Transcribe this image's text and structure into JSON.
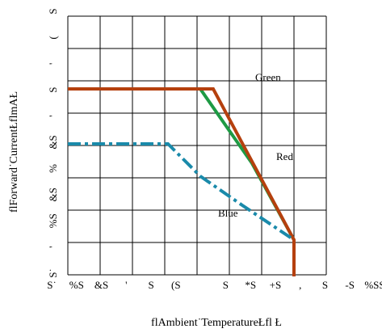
{
  "chart_data": {
    "type": "line",
    "xlabel": "flAmbient˙TemperatureŁfl  Ł",
    "ylabel": "flForward˙CurrentŁflmAŁ",
    "x_tick_labels": [
      "S˙",
      "%S",
      "&S",
      "'",
      "S",
      "(S",
      "",
      "S",
      "*S",
      "+S",
      ",",
      "S",
      "-S",
      "%SS"
    ],
    "y_tick_labels": [
      "S˙",
      "'",
      "%S",
      "&S",
      "%",
      "&S",
      "'",
      "S",
      "'",
      "(",
      "S"
    ],
    "grid": true,
    "xlim": [
      0,
      8
    ],
    "ylim": [
      0,
      8
    ],
    "series": [
      {
        "name": "Green",
        "color": "#1e9a44",
        "dash": "solid",
        "x": [
          0,
          4.1,
          5.7,
          7
        ],
        "y": [
          5.75,
          5.75,
          3.45,
          1.08
        ]
      },
      {
        "name": "Red",
        "color": "#b5400e",
        "dash": "solid",
        "x": [
          0,
          4.5,
          7,
          7,
          7
        ],
        "y": [
          5.75,
          5.75,
          1.08,
          0,
          -0.05
        ]
      },
      {
        "name": "Blue",
        "color": "#1a8aaa",
        "dash": "dashdot",
        "x": [
          0,
          3.1,
          4.1,
          5.4,
          7
        ],
        "y": [
          4.05,
          4.05,
          3.05,
          2.15,
          1.08
        ]
      }
    ],
    "annotations": [
      {
        "text": "Green",
        "x": 5.8,
        "y": 6.0
      },
      {
        "text": "Red",
        "x": 6.45,
        "y": 3.55
      },
      {
        "text": "Blue",
        "x": 4.65,
        "y": 1.8
      }
    ]
  }
}
